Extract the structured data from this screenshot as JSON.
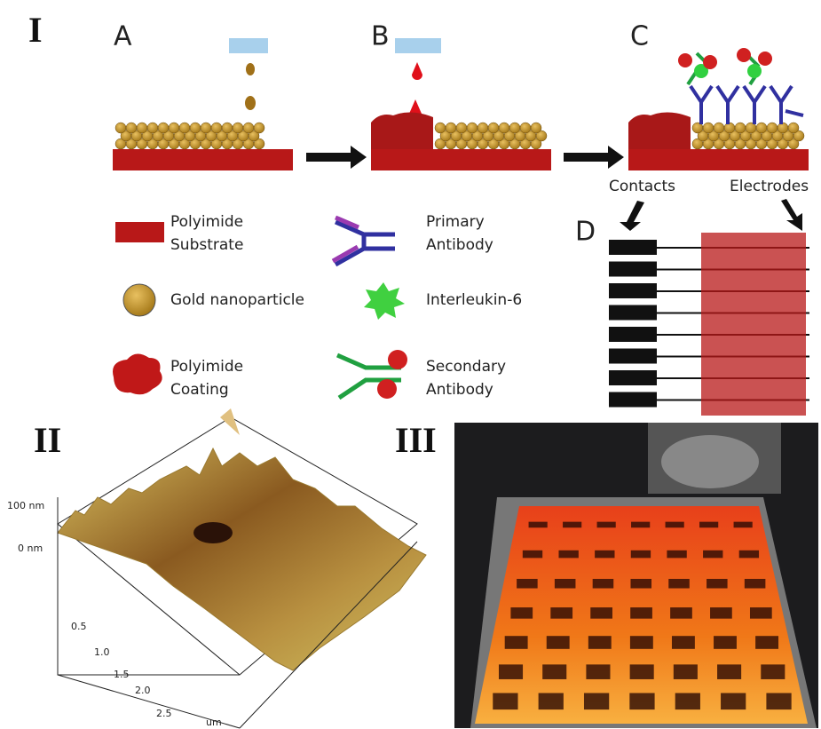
{
  "panels": {
    "main": "I",
    "afm": "II",
    "photo": "III"
  },
  "steps": [
    "A",
    "B",
    "C",
    "D"
  ],
  "legend": [
    {
      "label": [
        "Polyimide",
        "Substrate"
      ]
    },
    {
      "label": [
        "Primary",
        "Antibody"
      ]
    },
    {
      "label": [
        "Gold nanoparticle"
      ]
    },
    {
      "label": [
        "Interleukin-6"
      ]
    },
    {
      "label": [
        "Polyimide",
        "Coating"
      ]
    },
    {
      "label": [
        "Secondary",
        "Antibody"
      ]
    }
  ],
  "electrode_labels": {
    "contacts": "Contacts",
    "electrodes": "Electrodes"
  },
  "afm": {
    "z_labels": [
      "100 nm",
      "0 nm"
    ],
    "x_labels": [
      "0.5",
      "1.0",
      "1.5",
      "2.0",
      "2.5"
    ],
    "unit": "um"
  }
}
